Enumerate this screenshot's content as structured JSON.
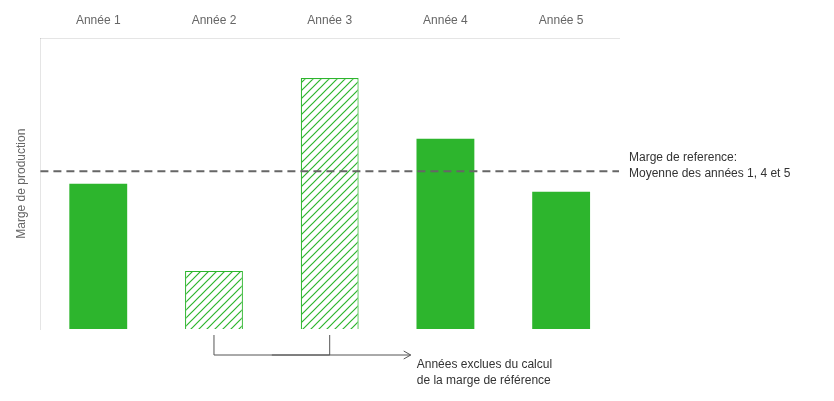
{
  "chart_data": {
    "type": "bar",
    "categories": [
      "Année 1",
      "Année 2",
      "Année 3",
      "Année 4",
      "Année 5"
    ],
    "series": [
      {
        "color": "#2db52d",
        "values": [
          55,
          null,
          null,
          72,
          52
        ]
      },
      {
        "color": "#2db52d",
        "marker": "hatch",
        "values": [
          null,
          22,
          95,
          null,
          null
        ]
      }
    ],
    "ylabel": "Marge de production",
    "ylim": [
      0,
      110
    ],
    "yticks": [],
    "tick_labels": "x",
    "grid": false,
    "reference_line": {
      "value": 59.67,
      "label": "Marge de reference:\nMoyenne des années 1, 4 et 5",
      "color": "#666666",
      "line_style": "dashed"
    },
    "annotations": [
      {
        "text": "Années exclues du calcul\nde la marge de référence",
        "categories": [
          "Année 2",
          "Année 3"
        ]
      }
    ]
  }
}
